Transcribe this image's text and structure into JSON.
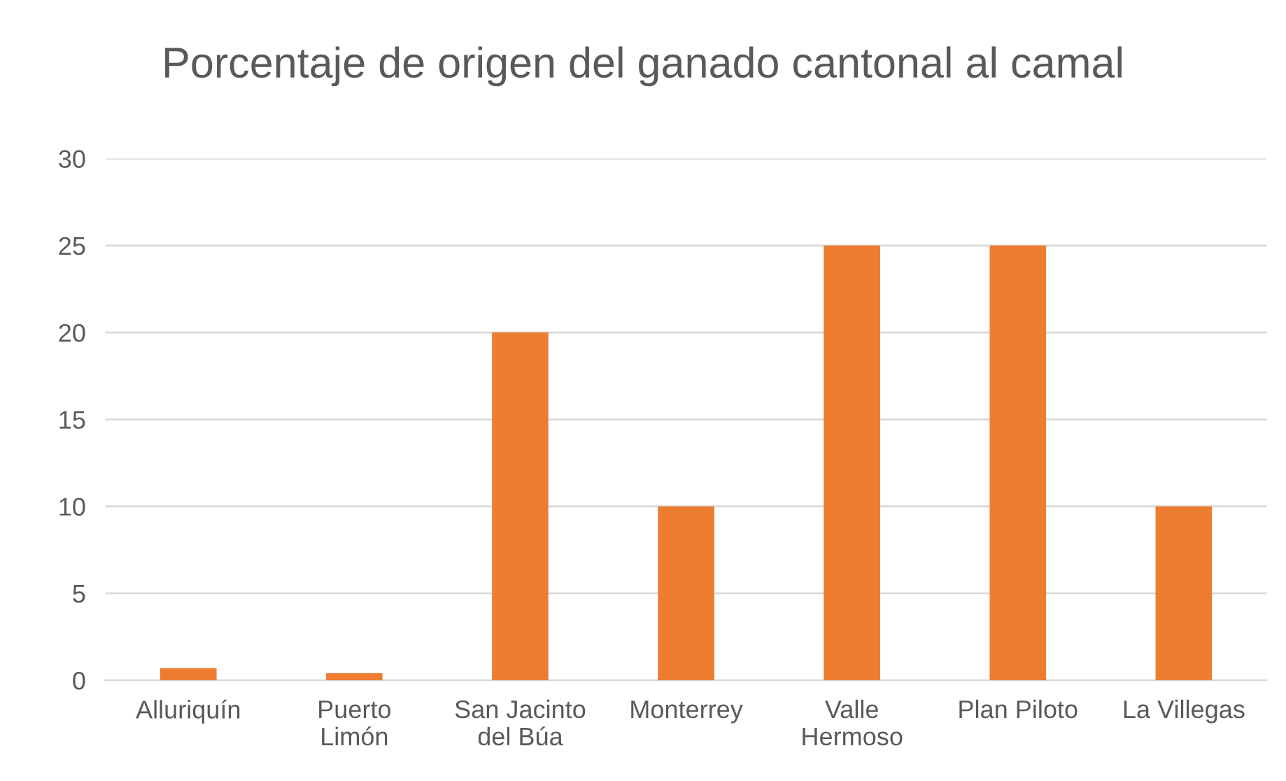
{
  "chart_data": {
    "type": "bar",
    "title": "Porcentaje de origen del ganado cantonal al camal",
    "categories": [
      "Alluriquín",
      "Puerto\nLimón",
      "San Jacinto\ndel Búa",
      "Monterrey",
      "Valle\nHermoso",
      "Plan Piloto",
      "La Villegas"
    ],
    "values": [
      0.7,
      0.4,
      20,
      10,
      25,
      25,
      10
    ],
    "color": "#ed7d31",
    "ylim": [
      0,
      30
    ],
    "yticks": [
      0,
      5,
      10,
      15,
      20,
      25,
      30
    ],
    "grid": "y",
    "legend": false
  }
}
